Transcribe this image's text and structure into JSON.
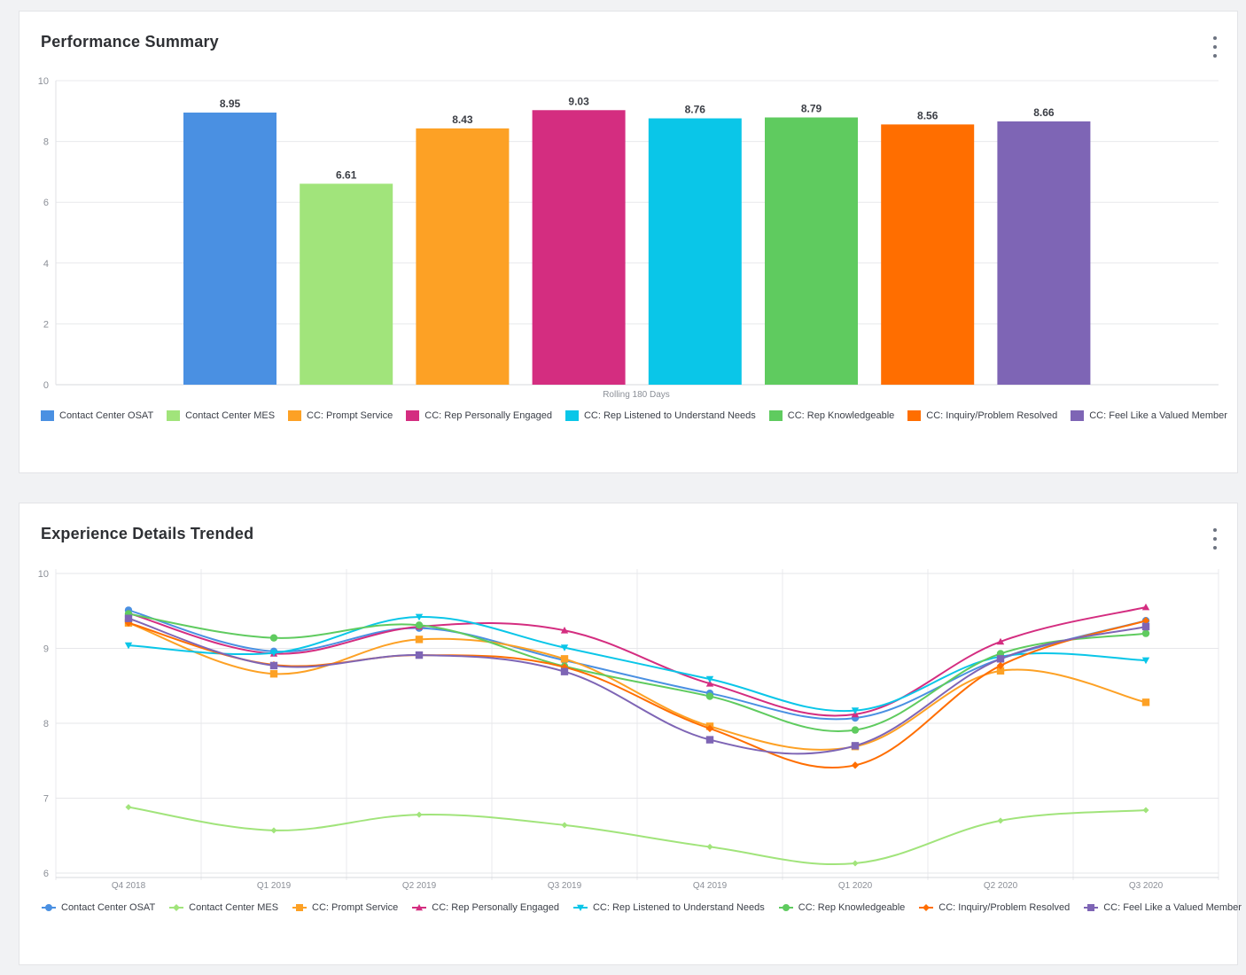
{
  "panels": {
    "summary": {
      "title": "Performance Summary",
      "menu_icon": "kebab-menu-icon"
    },
    "trend": {
      "title": "Experience Details Trended",
      "menu_icon": "kebab-menu-icon"
    }
  },
  "series": [
    {
      "name": "Contact Center OSAT",
      "color": "#4a90e2",
      "marker": "circle"
    },
    {
      "name": "Contact Center MES",
      "color": "#a1e47b",
      "marker": "diamond"
    },
    {
      "name": "CC: Prompt Service",
      "color": "#fda125",
      "marker": "square"
    },
    {
      "name": "CC: Rep Personally Engaged",
      "color": "#d42d80",
      "marker": "triangle"
    },
    {
      "name": "CC: Rep Listened to Understand Needs",
      "color": "#0ac6e8",
      "marker": "triangle-down"
    },
    {
      "name": "CC: Rep Knowledgeable",
      "color": "#5fcb5f",
      "marker": "circle"
    },
    {
      "name": "CC: Inquiry/Problem Resolved",
      "color": "#ff6e00",
      "marker": "diamond"
    },
    {
      "name": "CC: Feel Like a Valued Member",
      "color": "#7e65b5",
      "marker": "square"
    }
  ],
  "chart_data": [
    {
      "type": "bar",
      "title": "Performance Summary",
      "categories": [
        "Rolling 180 Days"
      ],
      "xlabel": "Rolling 180 Days",
      "ylabel": "",
      "ylim": [
        0,
        10
      ],
      "yticks": [
        0,
        2,
        4,
        6,
        8,
        10
      ],
      "grid": true,
      "legend": "bottom",
      "series": [
        {
          "name": "Contact Center OSAT",
          "values": [
            8.95
          ],
          "label": "8.95"
        },
        {
          "name": "Contact Center MES",
          "values": [
            6.61
          ],
          "label": "6.61"
        },
        {
          "name": "CC: Prompt Service",
          "values": [
            8.43
          ],
          "label": "8.43"
        },
        {
          "name": "CC: Rep Personally Engaged",
          "values": [
            9.03
          ],
          "label": "9.03"
        },
        {
          "name": "CC: Rep Listened to Understand Needs",
          "values": [
            8.76
          ],
          "label": "8.76"
        },
        {
          "name": "CC: Rep Knowledgeable",
          "values": [
            8.79
          ],
          "label": "8.79"
        },
        {
          "name": "CC: Inquiry/Problem Resolved",
          "values": [
            8.56
          ],
          "label": "8.56"
        },
        {
          "name": "CC: Feel Like a Valued Member",
          "values": [
            8.66
          ],
          "label": "8.66"
        }
      ]
    },
    {
      "type": "line",
      "title": "Experience Details Trended",
      "x": [
        "Q4 2018",
        "Q1 2019",
        "Q2 2019",
        "Q3 2019",
        "Q4 2019",
        "Q1 2020",
        "Q2 2020",
        "Q3 2020"
      ],
      "xlabel": "",
      "ylabel": "",
      "ylim": [
        6,
        10
      ],
      "yticks": [
        6,
        7,
        8,
        9,
        10
      ],
      "grid": true,
      "smooth": true,
      "legend": "bottom",
      "series": [
        {
          "name": "Contact Center OSAT",
          "values": [
            9.51,
            8.96,
            9.27,
            8.84,
            8.4,
            8.07,
            8.86,
            9.37
          ]
        },
        {
          "name": "Contact Center MES",
          "values": [
            6.88,
            6.57,
            6.78,
            6.64,
            6.35,
            6.13,
            6.7,
            6.84
          ]
        },
        {
          "name": "CC: Prompt Service",
          "values": [
            9.34,
            8.66,
            9.12,
            8.86,
            7.96,
            7.69,
            8.7,
            8.28
          ]
        },
        {
          "name": "CC: Rep Personally Engaged",
          "values": [
            9.47,
            8.93,
            9.29,
            9.24,
            8.53,
            8.12,
            9.09,
            9.55
          ]
        },
        {
          "name": "CC: Rep Listened to Understand Needs",
          "values": [
            9.04,
            8.94,
            9.42,
            9.01,
            8.59,
            8.17,
            8.89,
            8.84
          ]
        },
        {
          "name": "CC: Rep Knowledgeable",
          "values": [
            9.46,
            9.14,
            9.31,
            8.76,
            8.36,
            7.91,
            8.93,
            9.2
          ]
        },
        {
          "name": "CC: Inquiry/Problem Resolved",
          "values": [
            9.34,
            8.78,
            8.91,
            8.75,
            7.93,
            7.44,
            8.77,
            9.37
          ]
        },
        {
          "name": "CC: Feel Like a Valued Member",
          "values": [
            9.4,
            8.77,
            8.91,
            8.69,
            7.78,
            7.7,
            8.86,
            9.29
          ]
        }
      ]
    }
  ]
}
